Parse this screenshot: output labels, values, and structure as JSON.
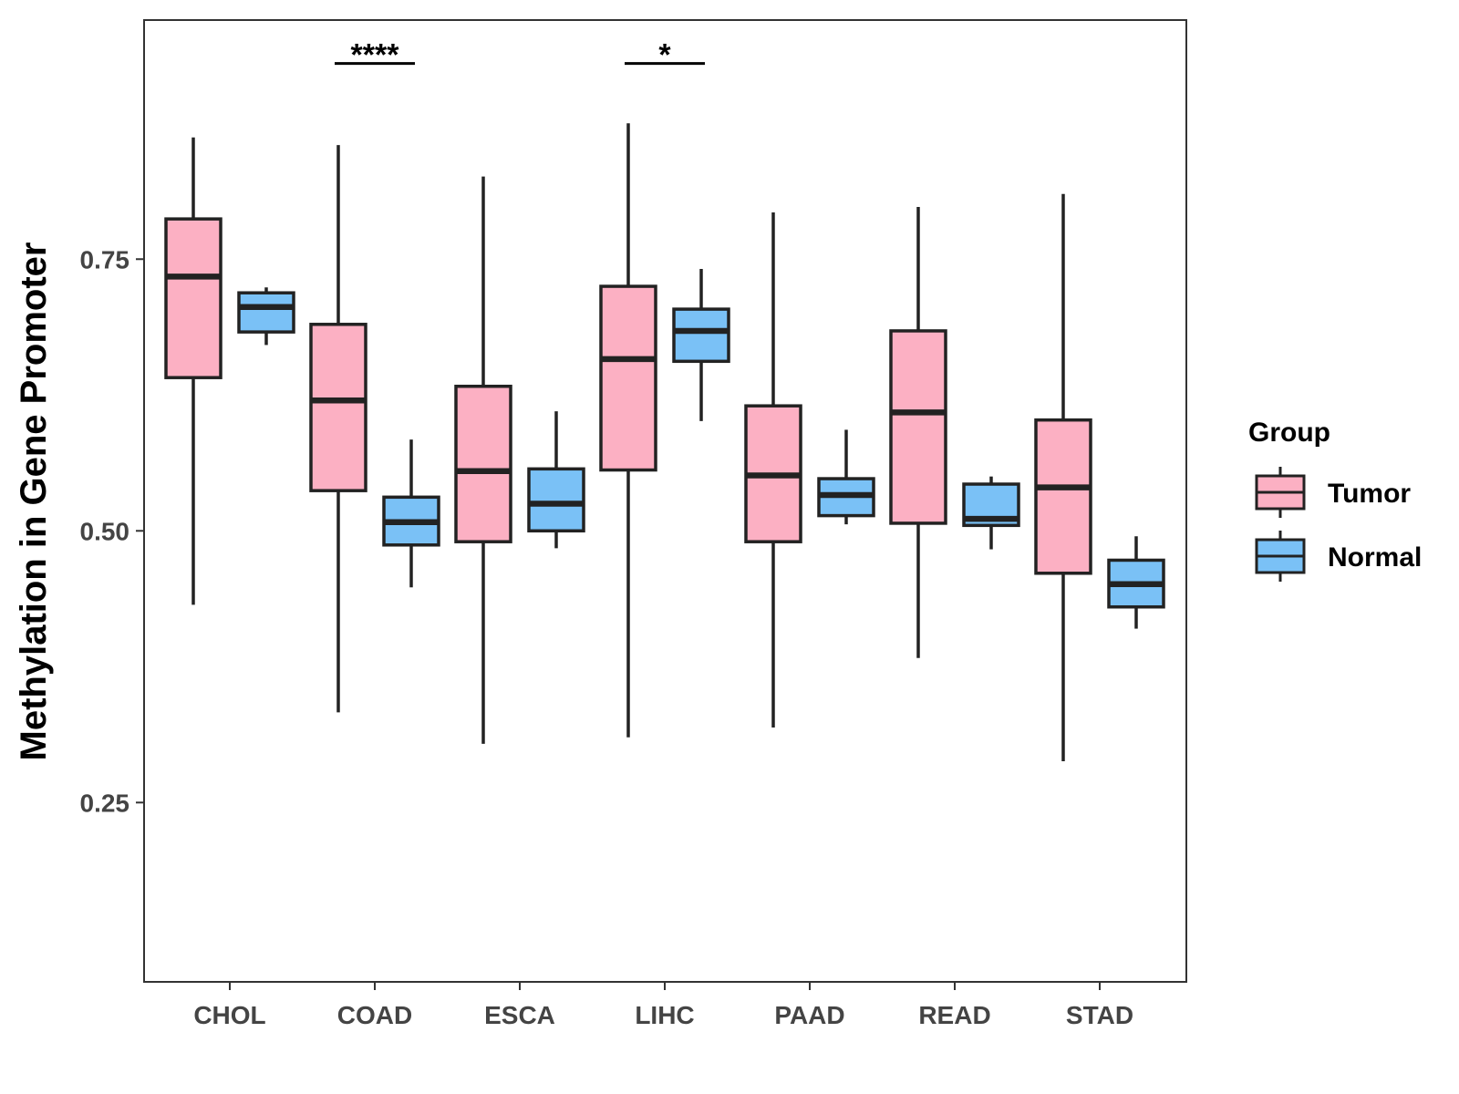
{
  "chart_data": {
    "type": "boxplot",
    "title": "",
    "xlabel": "",
    "ylabel": "Methylation in Gene Promoter",
    "ylim": [
      0.085,
      0.97
    ],
    "y_ticks": [
      0.25,
      0.5,
      0.75
    ],
    "y_tick_labels": [
      "0.25",
      "0.50",
      "0.75"
    ],
    "categories": [
      "CHOL",
      "COAD",
      "ESCA",
      "LIHC",
      "PAAD",
      "READ",
      "STAD"
    ],
    "legend": {
      "title": "Group",
      "position": "right"
    },
    "series": [
      {
        "name": "Tumor",
        "color": "#FCB0C3",
        "boxes": [
          {
            "min": 0.432,
            "q1": 0.641,
            "median": 0.734,
            "q3": 0.787,
            "max": 0.862
          },
          {
            "min": 0.333,
            "q1": 0.537,
            "median": 0.62,
            "q3": 0.69,
            "max": 0.855
          },
          {
            "min": 0.304,
            "q1": 0.49,
            "median": 0.555,
            "q3": 0.633,
            "max": 0.826
          },
          {
            "min": 0.31,
            "q1": 0.556,
            "median": 0.658,
            "q3": 0.725,
            "max": 0.875
          },
          {
            "min": 0.319,
            "q1": 0.49,
            "median": 0.551,
            "q3": 0.615,
            "max": 0.793
          },
          {
            "min": 0.383,
            "q1": 0.507,
            "median": 0.609,
            "q3": 0.684,
            "max": 0.798
          },
          {
            "min": 0.288,
            "q1": 0.461,
            "median": 0.54,
            "q3": 0.602,
            "max": 0.81
          }
        ]
      },
      {
        "name": "Normal",
        "color": "#7AC1F6",
        "boxes": [
          {
            "min": 0.671,
            "q1": 0.683,
            "median": 0.706,
            "q3": 0.719,
            "max": 0.724
          },
          {
            "min": 0.448,
            "q1": 0.487,
            "median": 0.508,
            "q3": 0.531,
            "max": 0.584
          },
          {
            "min": 0.484,
            "q1": 0.5,
            "median": 0.525,
            "q3": 0.557,
            "max": 0.61
          },
          {
            "min": 0.601,
            "q1": 0.656,
            "median": 0.684,
            "q3": 0.704,
            "max": 0.741
          },
          {
            "min": 0.506,
            "q1": 0.514,
            "median": 0.533,
            "q3": 0.548,
            "max": 0.593
          },
          {
            "min": 0.483,
            "q1": 0.505,
            "median": 0.511,
            "q3": 0.543,
            "max": 0.55
          },
          {
            "min": 0.41,
            "q1": 0.43,
            "median": 0.451,
            "q3": 0.473,
            "max": 0.495
          }
        ]
      }
    ],
    "significance": [
      {
        "category": "COAD",
        "label": "****",
        "y": 0.93
      },
      {
        "category": "LIHC",
        "label": "*",
        "y": 0.93
      }
    ]
  }
}
